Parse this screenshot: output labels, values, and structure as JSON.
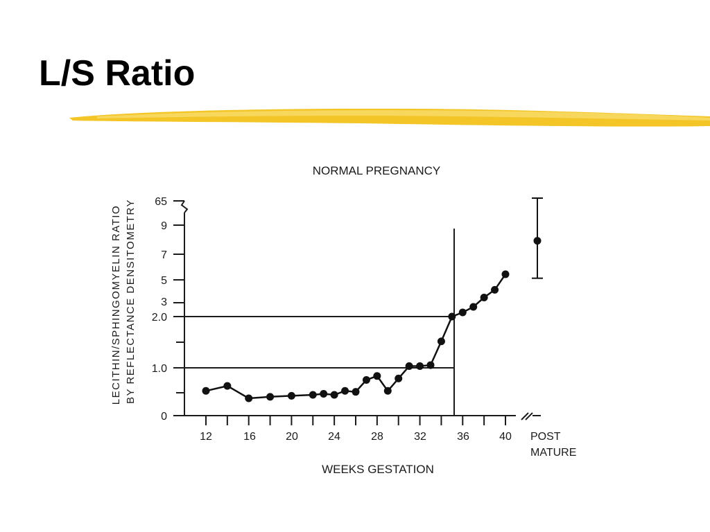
{
  "slide": {
    "title": "L/S Ratio",
    "accent_color": "#F2C21B"
  },
  "chart_data": {
    "type": "line",
    "title": "NORMAL PREGNANCY",
    "xlabel": "WEEKS GESTATION",
    "ylabel_line1": "LECITHIN/SPHINGOMYELIN RATIO",
    "ylabel_line2": "BY REFLECTANCE DENSITOMETRY",
    "x_ticks": [
      "12",
      "16",
      "20",
      "24",
      "28",
      "32",
      "36",
      "40"
    ],
    "x_extra_label_line1": "POST",
    "x_extra_label_line2": "MATURE",
    "y_ticks": [
      "0",
      "1.0",
      "2.0",
      "3",
      "5",
      "7",
      "9",
      "65"
    ],
    "y_scale": "broken: linear 0–2.0, then compressed 3–9, break to 65",
    "reference_lines": [
      {
        "axis": "y",
        "value": 1.0
      },
      {
        "axis": "y",
        "value": 2.0
      },
      {
        "axis": "x",
        "value": 35
      }
    ],
    "series": [
      {
        "x": [
          12,
          14,
          16,
          18,
          20,
          22,
          23,
          24,
          25,
          26,
          27,
          28,
          29,
          30,
          31,
          32,
          33,
          34,
          35,
          36,
          37,
          38,
          39,
          40
        ],
        "y": [
          0.5,
          0.6,
          0.35,
          0.38,
          0.4,
          0.42,
          0.44,
          0.42,
          0.5,
          0.48,
          0.72,
          0.8,
          0.5,
          0.75,
          1.0,
          1.0,
          1.02,
          1.5,
          2.0,
          2.3,
          2.7,
          3.4,
          4.0,
          5.2
        ]
      }
    ],
    "post_mature": {
      "center": 8,
      "low": 5,
      "high": 65
    }
  }
}
